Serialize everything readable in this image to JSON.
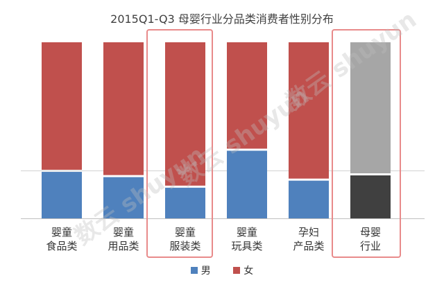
{
  "chart_data": {
    "type": "bar",
    "stacked": true,
    "title": "2015Q1-Q3 母婴行业分品类消费者性别分布",
    "categories": [
      [
        "婴童",
        "食品类"
      ],
      [
        "婴童",
        "用品类"
      ],
      [
        "婴童",
        "服装类"
      ],
      [
        "婴童",
        "玩具类"
      ],
      [
        "孕妇",
        "产品类"
      ],
      [
        "母婴",
        "行业"
      ]
    ],
    "series": [
      {
        "name": "男",
        "color": "#4f81bd",
        "values": [
          27,
          24,
          18,
          39,
          22,
          25
        ]
      },
      {
        "name": "女",
        "color": "#c0504d",
        "values": [
          73,
          76,
          82,
          61,
          78,
          75
        ]
      }
    ],
    "industry_colors": {
      "男": "#404040",
      "女": "#a6a6a6"
    },
    "highlighted": [
      "婴童服装类",
      "母婴行业"
    ],
    "ylim": [
      0,
      100
    ],
    "reference_line": 27,
    "legend": {
      "position": "bottom",
      "entries": [
        "男",
        "女"
      ]
    },
    "watermark": "数云 shuyun"
  }
}
